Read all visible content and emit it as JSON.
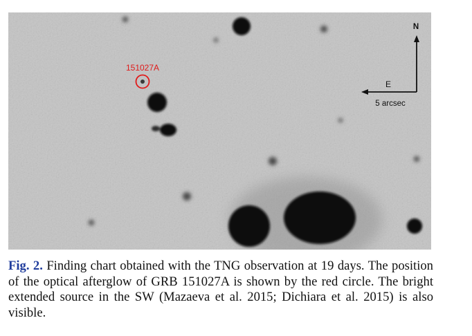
{
  "figure": {
    "grb_label": "151027A",
    "compass_north": "N",
    "compass_east": "E",
    "scale_label": "5 arcsec",
    "colors": {
      "marker": "#e01a1a",
      "background": "#c4c4c4",
      "sources": "#080808"
    }
  },
  "caption": {
    "label": "Fig. 2.",
    "text": "Finding chart obtained with the TNG observation at 19 days. The position of the optical afterglow of GRB 151027A is shown by the red circle. The bright extended source in the SW (Mazaeva et al. 2015; Dichiara et al. 2015) is also visible."
  }
}
